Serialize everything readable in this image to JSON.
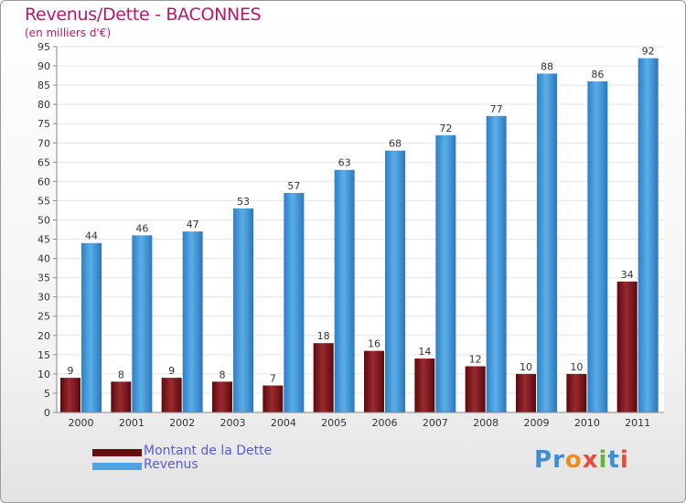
{
  "header": {
    "title": "Revenus/Dette - BACONNES",
    "subtitle": "(en milliers d'€)"
  },
  "legend": {
    "debt_label": "Montant de la Dette",
    "revenue_label": "Revenus"
  },
  "logo": {
    "text": "Proxiti",
    "letters": [
      "P",
      "r",
      "o",
      "x",
      "i",
      "t",
      "i"
    ],
    "letter_colors": [
      "#3c8fd6",
      "#3c8fd6",
      "#f08c1e",
      "#e64b3c",
      "#6ab23e",
      "#3c8fd6",
      "#e64b3c"
    ]
  },
  "colors": {
    "debt": "#7a1418",
    "revenue": "#4ea3e2",
    "title": "#b5186b"
  },
  "chart_data": {
    "type": "bar",
    "title": "Revenus/Dette - BACONNES",
    "subtitle": "(en milliers d'€)",
    "xlabel": "",
    "ylabel": "",
    "ylim": [
      0,
      95
    ],
    "ytick_step": 5,
    "grid": true,
    "legend_position": "bottom-left",
    "categories": [
      "2000",
      "2001",
      "2002",
      "2003",
      "2004",
      "2005",
      "2006",
      "2007",
      "2008",
      "2009",
      "2010",
      "2011"
    ],
    "series": [
      {
        "name": "Montant de la Dette",
        "values": [
          9,
          8,
          9,
          8,
          7,
          18,
          16,
          14,
          12,
          10,
          10,
          34
        ]
      },
      {
        "name": "Revenus",
        "values": [
          44,
          46,
          47,
          53,
          57,
          63,
          68,
          72,
          77,
          88,
          86,
          92
        ]
      }
    ]
  }
}
